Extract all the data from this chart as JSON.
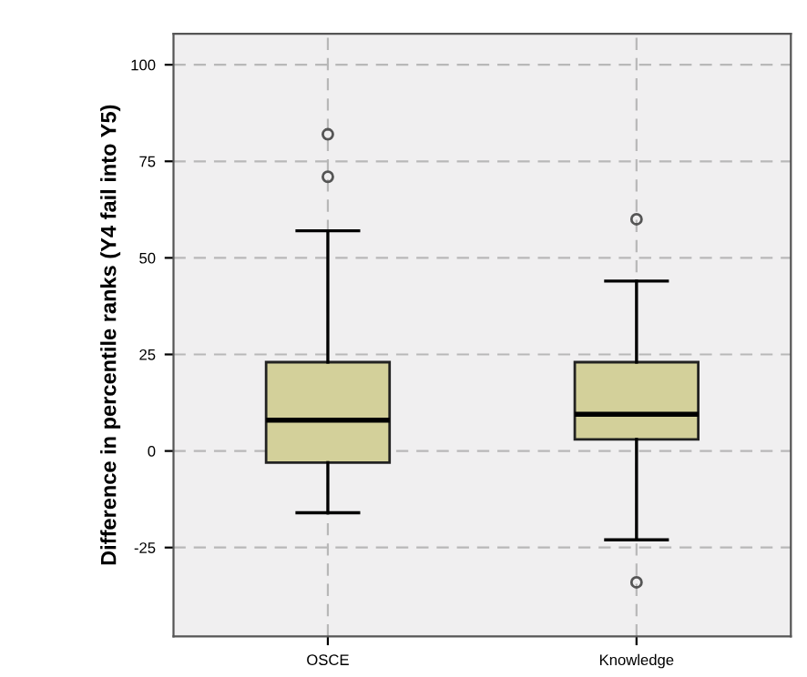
{
  "chart_data": {
    "type": "box",
    "ylabel": "Difference in percentile ranks (Y4 fail into Y5)",
    "categories": [
      "OSCE",
      "Knowledge"
    ],
    "boxes": [
      {
        "low": -16,
        "q1": -3,
        "median": 8,
        "q3": 23,
        "high": 57,
        "outliers": [
          71,
          82
        ]
      },
      {
        "low": -23,
        "q1": 3,
        "median": 9.5,
        "q3": 23,
        "high": 44,
        "outliers": [
          60,
          -34
        ]
      }
    ],
    "color": "#d3d09a",
    "ylim": [
      -48,
      108
    ],
    "yticks": [
      -25,
      0,
      25,
      50,
      75,
      100
    ],
    "grid": true
  }
}
